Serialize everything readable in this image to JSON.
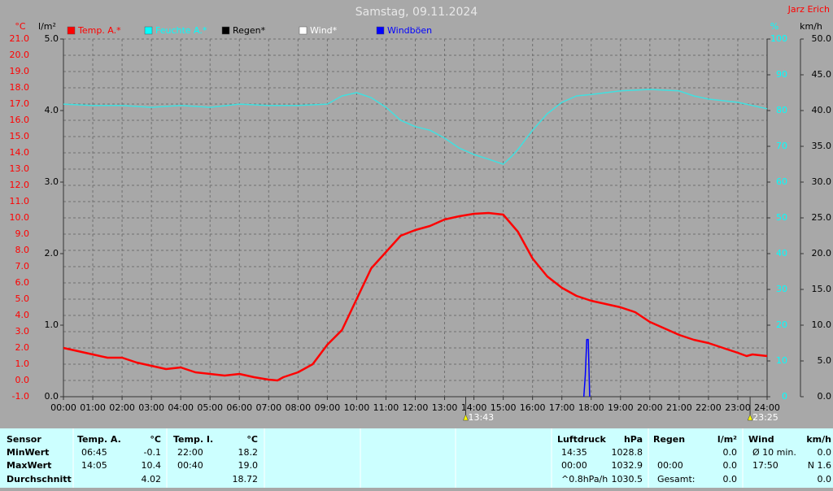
{
  "chart_data": {
    "type": "line",
    "title": "Samstag, 09.11.2024",
    "author": "Jarz Erich",
    "y_label": "°C",
    "y3_label": "l/m²",
    "y2_label": "%",
    "y4_label": "km/h",
    "legend": [
      {
        "name": "Temp. A.*",
        "color": "#ff0000"
      },
      {
        "name": "Feuchte A.*",
        "color": "#00ffff"
      },
      {
        "name": "Regen*",
        "color": "#000000"
      },
      {
        "name": "Wind*",
        "color": "#ffffff"
      },
      {
        "name": "Windböen",
        "color": "#0000ff"
      }
    ],
    "xlim": [
      0,
      24
    ],
    "xticks": [
      {
        "value": 0,
        "label": "00:00"
      },
      {
        "value": 1,
        "label": "01:00"
      },
      {
        "value": 2,
        "label": "02:00"
      },
      {
        "value": 3,
        "label": "03:00"
      },
      {
        "value": 4,
        "label": "04:00"
      },
      {
        "value": 5,
        "label": "05:00"
      },
      {
        "value": 6,
        "label": "06:00"
      },
      {
        "value": 7,
        "label": "07:00"
      },
      {
        "value": 8,
        "label": "08:00"
      },
      {
        "value": 9,
        "label": "09:00"
      },
      {
        "value": 10,
        "label": "10:00"
      },
      {
        "value": 11,
        "label": "11:00"
      },
      {
        "value": 12,
        "label": "12:00"
      },
      {
        "value": 13,
        "label": "13:00"
      },
      {
        "value": 14,
        "label": "14:00"
      },
      {
        "value": 15,
        "label": "15:00"
      },
      {
        "value": 16,
        "label": "16:00"
      },
      {
        "value": 17,
        "label": "17:00"
      },
      {
        "value": 18,
        "label": "18:00"
      },
      {
        "value": 19,
        "label": "19:00"
      },
      {
        "value": 20,
        "label": "20:00"
      },
      {
        "value": 21,
        "label": "21:00"
      },
      {
        "value": 22,
        "label": "22:00"
      },
      {
        "value": 23,
        "label": "23:00"
      },
      {
        "value": 24,
        "label": "24:00"
      }
    ],
    "ylim": [
      -1,
      21
    ],
    "yticks": [
      {
        "value": -1,
        "label": "-1.0"
      },
      {
        "value": 0,
        "label": "0.0"
      },
      {
        "value": 1,
        "label": "1.0"
      },
      {
        "value": 2,
        "label": "2.0"
      },
      {
        "value": 3,
        "label": "3.0"
      },
      {
        "value": 4,
        "label": "4.0"
      },
      {
        "value": 5,
        "label": "5.0"
      },
      {
        "value": 6,
        "label": "6.0"
      },
      {
        "value": 7,
        "label": "7.0"
      },
      {
        "value": 8,
        "label": "8.0"
      },
      {
        "value": 9,
        "label": "9.0"
      },
      {
        "value": 10,
        "label": "10.0"
      },
      {
        "value": 11,
        "label": "11.0"
      },
      {
        "value": 12,
        "label": "12.0"
      },
      {
        "value": 13,
        "label": "13.0"
      },
      {
        "value": 14,
        "label": "14.0"
      },
      {
        "value": 15,
        "label": "15.0"
      },
      {
        "value": 16,
        "label": "16.0"
      },
      {
        "value": 17,
        "label": "17.0"
      },
      {
        "value": 18,
        "label": "18.0"
      },
      {
        "value": 19,
        "label": "19.0"
      },
      {
        "value": 20,
        "label": "20.0"
      },
      {
        "value": 21,
        "label": "21.0"
      }
    ],
    "y3lim": [
      0,
      5
    ],
    "y3ticks": [
      {
        "value": 0,
        "label": "0.0"
      },
      {
        "value": 1,
        "label": "1.0"
      },
      {
        "value": 2,
        "label": "2.0"
      },
      {
        "value": 3,
        "label": "3.0"
      },
      {
        "value": 4,
        "label": "4.0"
      },
      {
        "value": 5,
        "label": "5.0"
      }
    ],
    "y2lim": [
      0,
      100
    ],
    "y2ticks": [
      0,
      10,
      20,
      30,
      40,
      50,
      60,
      70,
      80,
      90,
      100
    ],
    "y4lim": [
      0,
      50
    ],
    "y4ticks": [
      {
        "value": 0,
        "label": "0.0"
      },
      {
        "value": 5,
        "label": "5.0"
      },
      {
        "value": 10,
        "label": "10.0"
      },
      {
        "value": 15,
        "label": "15.0"
      },
      {
        "value": 20,
        "label": "20.0"
      },
      {
        "value": 25,
        "label": "25.0"
      },
      {
        "value": 30,
        "label": "30.0"
      },
      {
        "value": 35,
        "label": "35.0"
      },
      {
        "value": 40,
        "label": "40.0"
      },
      {
        "value": 45,
        "label": "45.0"
      },
      {
        "value": 50,
        "label": "50.0"
      }
    ],
    "grid": true,
    "series": [
      {
        "name": "Temp. A.*",
        "color": "#ff0000",
        "axis": "y",
        "x": [
          0,
          0.5,
          1,
          1.5,
          2,
          2.5,
          3,
          3.5,
          4,
          4.5,
          5,
          5.5,
          6,
          6.5,
          7,
          7.3,
          7.5,
          8,
          8.5,
          9,
          9.5,
          10,
          10.5,
          11,
          11.5,
          12,
          12.5,
          13,
          13.5,
          14,
          14.5,
          15,
          15.5,
          16,
          16.5,
          17,
          17.5,
          18,
          18.5,
          19,
          19.5,
          20,
          20.5,
          21,
          21.5,
          22,
          22.5,
          23,
          23.3,
          23.5,
          24
        ],
        "values": [
          2.0,
          1.8,
          1.6,
          1.4,
          1.4,
          1.1,
          0.9,
          0.7,
          0.8,
          0.5,
          0.4,
          0.3,
          0.4,
          0.2,
          0.05,
          0.0,
          0.2,
          0.5,
          1.0,
          2.2,
          3.1,
          5.0,
          6.9,
          7.9,
          8.9,
          9.25,
          9.5,
          9.9,
          10.1,
          10.25,
          10.3,
          10.2,
          9.15,
          7.5,
          6.4,
          5.7,
          5.2,
          4.9,
          4.7,
          4.5,
          4.2,
          3.6,
          3.2,
          2.8,
          2.5,
          2.3,
          2.0,
          1.7,
          1.5,
          1.6,
          1.5
        ]
      },
      {
        "name": "Feuchte A.*",
        "color": "#40e0e0",
        "axis": "y2",
        "x": [
          0,
          1,
          2,
          3,
          4,
          5,
          6,
          7,
          8,
          9,
          9.5,
          10,
          10.5,
          11,
          11.5,
          12,
          12.5,
          13,
          13.5,
          14,
          14.5,
          15,
          15.3,
          15.5,
          16,
          16.5,
          17,
          17.5,
          18,
          18.5,
          19,
          20,
          21,
          21.5,
          22,
          23,
          24
        ],
        "values": [
          81.8,
          81.4,
          81.4,
          80.9,
          81.4,
          80.9,
          81.8,
          81.4,
          81.4,
          81.8,
          84.1,
          85.0,
          83.6,
          80.9,
          77.3,
          75.5,
          74.5,
          72.3,
          69.5,
          67.7,
          66.4,
          65.0,
          67.3,
          69.1,
          74.5,
          79.1,
          82.3,
          84.1,
          84.5,
          85.0,
          85.5,
          85.9,
          85.5,
          84.1,
          83.2,
          82.3,
          80.5
        ]
      },
      {
        "name": "Windböen",
        "color": "#0000ff",
        "axis": "y4",
        "x": [
          17.75,
          17.8,
          17.85,
          17.9,
          17.95
        ],
        "values": [
          0,
          3,
          8,
          8,
          0
        ]
      }
    ],
    "annotations": [
      {
        "x": 13.72,
        "label": "13:43"
      },
      {
        "x": 23.42,
        "label": "23:25"
      }
    ]
  },
  "table": {
    "groups": [
      {
        "header": "Sensor",
        "rows": [
          "MinWert",
          "MaxWert",
          "Durchschnitt"
        ]
      },
      {
        "header": "Temp. A.",
        "unit": "°C",
        "rows": [
          [
            "06:45",
            "-0.1"
          ],
          [
            "14:05",
            "10.4"
          ],
          [
            null,
            "4.02"
          ]
        ]
      },
      {
        "header": "Temp. I.",
        "unit": "°C",
        "rows": [
          [
            "22:00",
            "18.2"
          ],
          [
            "00:40",
            "19.0"
          ],
          [
            null,
            "18.72"
          ]
        ]
      },
      {
        "header": "Luftdruck",
        "unit": "hPa",
        "rows": [
          [
            "14:35",
            "1028.8"
          ],
          [
            "00:00",
            "1032.9"
          ],
          [
            "^0.8hPa/h",
            "1030.5"
          ]
        ]
      },
      {
        "header": "Regen",
        "unit": "l/m²",
        "rows": [
          [
            null,
            "0.0"
          ],
          [
            "00:00",
            "0.0"
          ],
          [
            "Gesamt:",
            "0.0"
          ]
        ]
      },
      {
        "header": "Wind",
        "unit": "km/h",
        "rows": [
          [
            "Ø 10 min.",
            "0.0"
          ],
          [
            "17:50",
            "N 1.6"
          ],
          [
            null,
            "0.0"
          ]
        ]
      }
    ]
  }
}
